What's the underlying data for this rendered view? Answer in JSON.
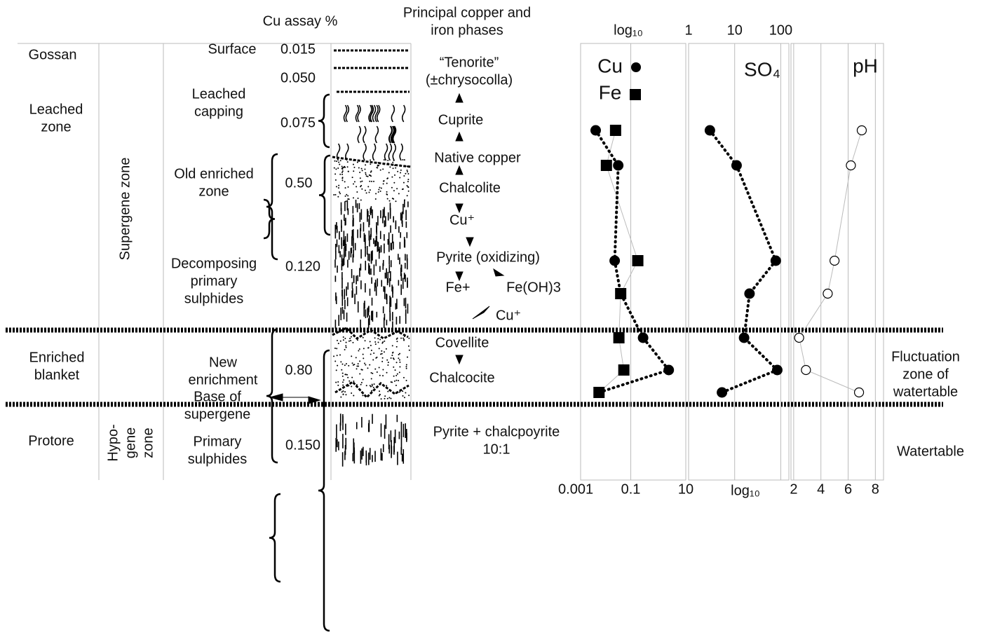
{
  "headers": {
    "cu_assay": "Cu assay %",
    "phases": [
      "Principal copper and",
      "iron phases"
    ]
  },
  "zones": [
    [
      "Gossan"
    ],
    [
      "Leached",
      "zone"
    ],
    [
      "Enriched",
      "blanket"
    ],
    [
      "Protore"
    ]
  ],
  "supergene_zone": "Supergene zone",
  "hypogene_zone": [
    "Hypo-",
    "gene",
    "zone"
  ],
  "layers": [
    [
      "Surface"
    ],
    [
      "Leached",
      "capping"
    ],
    [
      "Old enriched",
      "zone"
    ],
    [
      "Decomposing",
      "primary",
      "sulphides"
    ],
    [
      "New",
      "enrichment"
    ],
    [
      "Base of",
      "supergene"
    ],
    [
      "Primary",
      "sulphides"
    ]
  ],
  "assays": [
    "0.015",
    "0.050",
    "0.075",
    "0.50",
    "0.120",
    "0.80",
    "0.150"
  ],
  "phases": [
    [
      "“Tenorite”",
      "(±chrysocolla)"
    ],
    [
      "Cuprite"
    ],
    [
      "Native copper"
    ],
    [
      "Chalcolite"
    ],
    [
      "Cu⁺"
    ],
    [
      "Pyrite (oxidizing)"
    ],
    [
      "Fe+"
    ],
    [
      "Fe(OH)3"
    ],
    [
      "Cu⁺"
    ],
    [
      "Covellite"
    ],
    [
      "Chalcocite"
    ],
    [
      "Pyrite + chalcpoyrite",
      "10:1"
    ]
  ],
  "watertable": {
    "fluctuation": [
      "Fluctuation",
      "zone of",
      "watertable"
    ],
    "label": "Watertable"
  },
  "chart": {
    "cu_label": "Cu",
    "fe_label": "Fe",
    "so4_label": "SO₄",
    "ph_label": "pH",
    "top_log": "log₁₀",
    "bottom_log": "log₁₀",
    "metal_axis": {
      "xlim": [
        0.0015,
        10
      ],
      "xticks": [
        0.001,
        0.1,
        10
      ]
    },
    "so4_axis": {
      "xlim": [
        1,
        150
      ],
      "xticks": [
        1,
        10,
        100
      ]
    },
    "ph_axis": {
      "xlim": [
        1.8,
        8.6
      ],
      "xticks": [
        2,
        4,
        6,
        8
      ]
    },
    "cu": [
      0.0053,
      0.035,
      0.026,
      0.043,
      0.28,
      2.4,
      0.007
    ],
    "fe": [
      0.028,
      0.013,
      0.18,
      0.043,
      0.037,
      0.056,
      0.007
    ],
    "so4": [
      2.9,
      11,
      78,
      21,
      16,
      84,
      5.3
    ],
    "ph": [
      7.0,
      6.2,
      5.0,
      4.5,
      2.4,
      2.9,
      6.8
    ]
  }
}
